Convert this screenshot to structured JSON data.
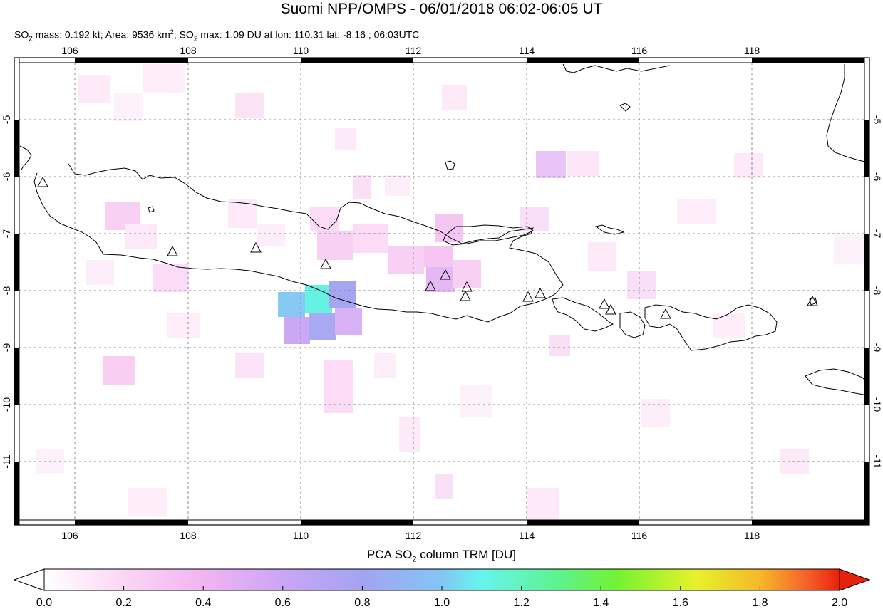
{
  "title": "Suomi NPP/OMPS - 06/01/2018 06:02-06:05 UT",
  "subtitle": {
    "so2_label": "SO",
    "sub2": "2",
    "mass": " mass: 0.192 kt; Area: 9536 km",
    "sup2": "2",
    "sep": "; SO",
    "sub2b": "2",
    "rest": " max: 1.09 DU at lon: 110.31 lat: -8.16 ; 06:03UTC"
  },
  "map": {
    "lon_ticks": [
      "106",
      "108",
      "110",
      "112",
      "114",
      "116",
      "118"
    ],
    "lat_ticks": [
      "-5",
      "-6",
      "-7",
      "-8",
      "-9",
      "-10",
      "-11"
    ],
    "lon_range": [
      104.9,
      120.0
    ],
    "lat_range": [
      -12.1,
      -4.0
    ]
  },
  "colorbar": {
    "title_a": "PCA SO",
    "title_sub": "2",
    "title_b": " column TRM [DU]",
    "tick_labels": [
      "0.0",
      "0.2",
      "0.4",
      "0.6",
      "0.8",
      "1.0",
      "1.2",
      "1.4",
      "1.6",
      "1.8",
      "2.0"
    ],
    "colors": [
      "#ffffff",
      "#fbd6f4",
      "#f2b4f2",
      "#c9a6f5",
      "#a3a3f2",
      "#83c6f5",
      "#66f5ee",
      "#5ef28a",
      "#73f233",
      "#e6f22a",
      "#f5b82a",
      "#f5602a",
      "#e8220a"
    ]
  },
  "volcano_icon": "triangle-outline-icon"
}
